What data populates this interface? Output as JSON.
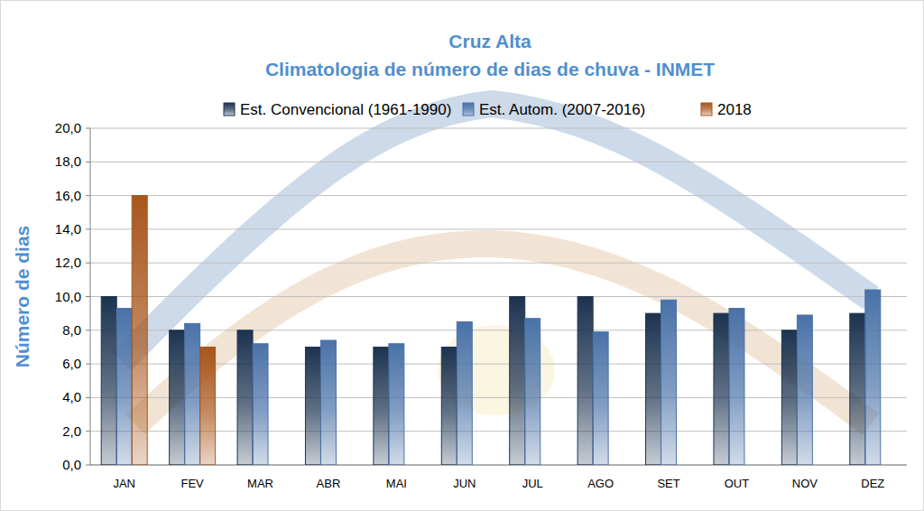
{
  "chart_data": {
    "type": "bar",
    "title": "Cruz Alta",
    "subtitle": "Climatologia de número de dias de chuva - INMET",
    "y_label": "Número de dias",
    "categories": [
      "JAN",
      "FEV",
      "MAR",
      "ABR",
      "MAI",
      "JUN",
      "JUL",
      "AGO",
      "SET",
      "OUT",
      "NOV",
      "DEZ"
    ],
    "series": [
      {
        "name": "Est. Convencional (1961-1990)",
        "color": "#1c3350",
        "values": [
          10,
          8,
          8,
          7,
          7,
          7,
          10,
          10,
          9,
          9,
          8,
          9
        ]
      },
      {
        "name": "Est. Autom. (2007-2016)",
        "color": "#4a72a8",
        "values": [
          9.3,
          8.4,
          7.2,
          7.4,
          7.2,
          8.5,
          8.7,
          7.9,
          9.8,
          9.3,
          8.9,
          10.4
        ]
      },
      {
        "name": "2018",
        "color": "#a8561c",
        "values": [
          16,
          7,
          null,
          null,
          null,
          null,
          null,
          null,
          null,
          null,
          null,
          null
        ]
      }
    ],
    "ylim": [
      0,
      20
    ],
    "yticks": [
      {
        "value": 0,
        "label": "0,0"
      },
      {
        "value": 2,
        "label": "2,0"
      },
      {
        "value": 4,
        "label": "4,0"
      },
      {
        "value": 6,
        "label": "6,0"
      },
      {
        "value": 8,
        "label": "8,0"
      },
      {
        "value": 10,
        "label": "10,0"
      },
      {
        "value": 12,
        "label": "12,0"
      },
      {
        "value": 14,
        "label": "14,0"
      },
      {
        "value": 16,
        "label": "16,0"
      },
      {
        "value": 18,
        "label": "18,0"
      },
      {
        "value": 20,
        "label": "20,0"
      }
    ],
    "grid": true,
    "legend": "top"
  }
}
